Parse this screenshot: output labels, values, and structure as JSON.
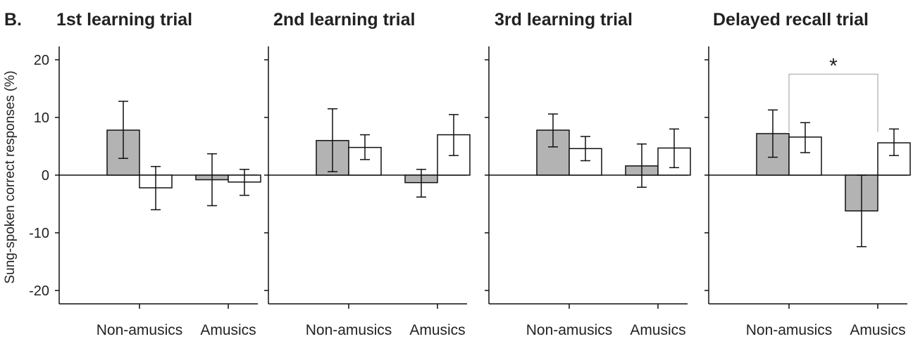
{
  "figure_label": "B.",
  "colors": {
    "bar_fill_a": "#b3b3b3",
    "bar_fill_b": "#ffffff",
    "stroke": "#111111",
    "bracket": "#bbbbbb"
  },
  "chart_data": [
    {
      "type": "bar",
      "title": "1st learning trial",
      "ylabel": "Sung-spoken correct responses (%)",
      "ylim": [
        -22,
        22
      ],
      "yticks": [
        20,
        10,
        0,
        -10,
        -20
      ],
      "categories": [
        "Non-amusics",
        "Amusics"
      ],
      "series": [
        {
          "style": "gray",
          "values": [
            7.8,
            -0.8
          ],
          "err_low": [
            2.9,
            -5.3
          ],
          "err_high": [
            12.8,
            3.7
          ]
        },
        {
          "style": "white",
          "values": [
            -2.2,
            -1.2
          ],
          "err_low": [
            -6.0,
            -3.5
          ],
          "err_high": [
            1.5,
            1.0
          ]
        }
      ]
    },
    {
      "type": "bar",
      "title": "2nd learning trial",
      "ylim": [
        -22,
        22
      ],
      "categories": [
        "Non-amusics",
        "Amusics"
      ],
      "series": [
        {
          "style": "gray",
          "values": [
            6.0,
            -1.3
          ],
          "err_low": [
            0.6,
            -3.8
          ],
          "err_high": [
            11.5,
            1.0
          ]
        },
        {
          "style": "white",
          "values": [
            4.8,
            7.0
          ],
          "err_low": [
            2.7,
            3.4
          ],
          "err_high": [
            7.0,
            10.5
          ]
        }
      ]
    },
    {
      "type": "bar",
      "title": "3rd learning trial",
      "ylim": [
        -22,
        22
      ],
      "categories": [
        "Non-amusics",
        "Amusics"
      ],
      "series": [
        {
          "style": "gray",
          "values": [
            7.8,
            1.6
          ],
          "err_low": [
            4.9,
            -2.1
          ],
          "err_high": [
            10.6,
            5.4
          ]
        },
        {
          "style": "white",
          "values": [
            4.6,
            4.7
          ],
          "err_low": [
            2.5,
            1.3
          ],
          "err_high": [
            6.7,
            8.0
          ]
        }
      ]
    },
    {
      "type": "bar",
      "title": "Delayed recall trial",
      "ylim": [
        -22,
        22
      ],
      "categories": [
        "Non-amusics",
        "Amusics"
      ],
      "series": [
        {
          "style": "gray",
          "values": [
            7.2,
            -6.2
          ],
          "err_low": [
            3.1,
            -12.4
          ],
          "err_high": [
            11.3,
            0.0
          ]
        },
        {
          "style": "white",
          "values": [
            6.6,
            5.6
          ],
          "err_low": [
            3.9,
            3.4
          ],
          "err_high": [
            9.1,
            8.0
          ]
        }
      ]
    }
  ],
  "annotation": {
    "panel": 3,
    "text": "*",
    "from": 0,
    "to": 1,
    "y": 17.5,
    "drop": 7.5
  }
}
